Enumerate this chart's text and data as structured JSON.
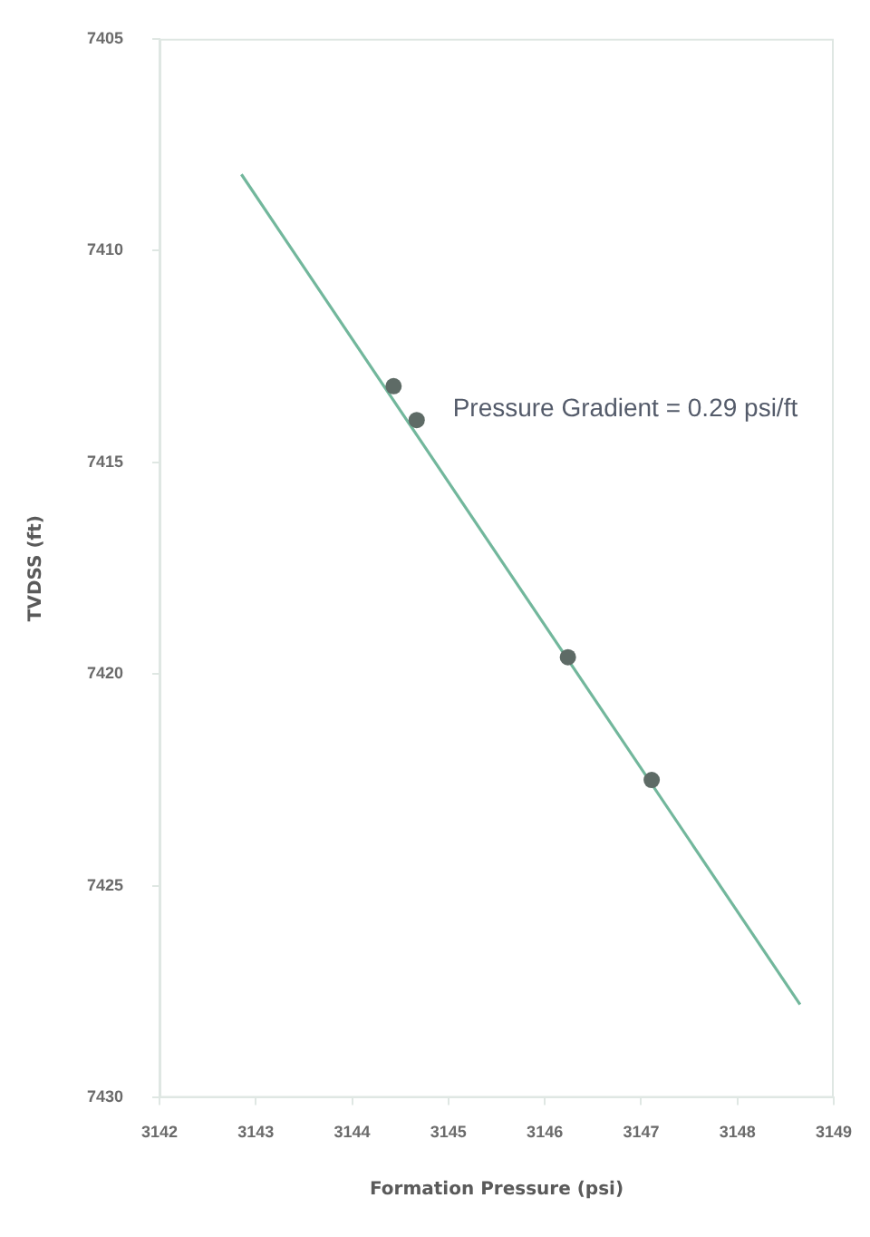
{
  "chart_data": {
    "type": "scatter",
    "xlabel": "Formation Pressure (psi)",
    "ylabel": "TVDSS (ft)",
    "xlim": [
      3142,
      3149
    ],
    "xticks": [
      3142,
      3143,
      3144,
      3145,
      3146,
      3147,
      3148,
      3149
    ],
    "ylim": [
      7430,
      7405
    ],
    "yticks": [
      7405,
      7410,
      7415,
      7420,
      7425,
      7430
    ],
    "series": [
      {
        "type": "scatter",
        "color": "#5e6b66",
        "marker": "circle",
        "x": [
          3144.43,
          3144.67,
          3146.24,
          3147.11
        ],
        "values": [
          7413.2,
          7414.0,
          7419.6,
          7422.5
        ]
      },
      {
        "type": "line",
        "color": "#72b79c",
        "line_style": "solid",
        "x": [
          3142.85,
          3148.65
        ],
        "values": [
          7408.2,
          7427.8
        ]
      }
    ],
    "annotations": [
      "Pressure Gradient = 0.29 psi/ft"
    ]
  }
}
